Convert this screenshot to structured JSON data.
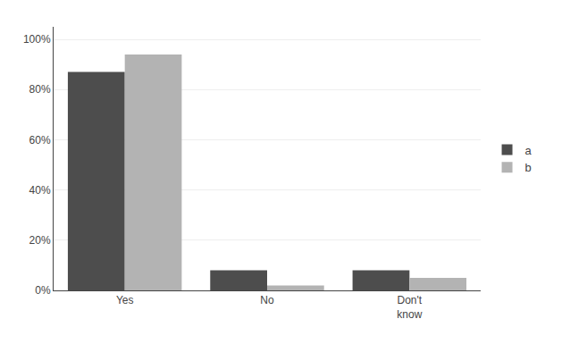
{
  "chart_data": {
    "type": "bar",
    "categories": [
      "Yes",
      "No",
      "Don't\nknow"
    ],
    "series": [
      {
        "name": "a",
        "color": "#4d4d4d",
        "values": [
          0.87,
          0.08,
          0.08
        ]
      },
      {
        "name": "b",
        "color": "#b3b3b3",
        "values": [
          0.94,
          0.02,
          0.05
        ]
      }
    ],
    "ylim": [
      0,
      1.05
    ],
    "yticks": [
      {
        "value": 0.0,
        "label": "0%"
      },
      {
        "value": 0.2,
        "label": "20%"
      },
      {
        "value": 0.4,
        "label": "40%"
      },
      {
        "value": 0.6,
        "label": "60%"
      },
      {
        "value": 0.8,
        "label": "80%"
      },
      {
        "value": 1.0,
        "label": "100%"
      }
    ],
    "grid": true,
    "legend": "right"
  }
}
